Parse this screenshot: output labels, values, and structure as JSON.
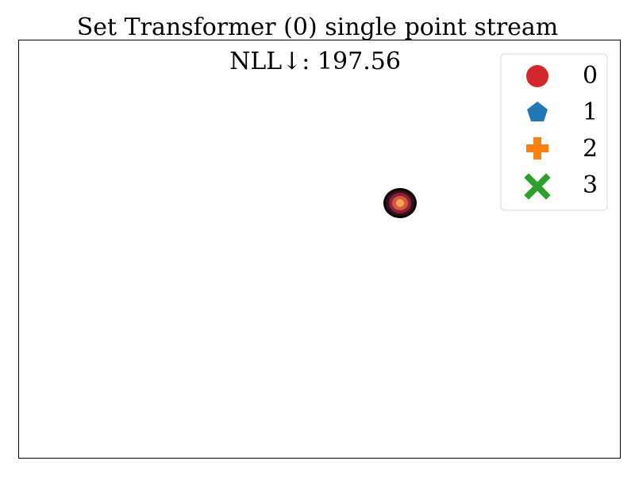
{
  "chart_data": {
    "type": "contour",
    "title": "Set Transformer (0) single point stream",
    "subtitle": "NLL↓: 197.56",
    "xlabel": "",
    "ylabel": "",
    "grid": false,
    "axes_ticks": "hidden",
    "legend": {
      "placement": "top-right",
      "entries": [
        {
          "label": "0",
          "marker": "circle",
          "color": "#d62728"
        },
        {
          "label": "1",
          "marker": "pentagon",
          "color": "#1f77b4"
        },
        {
          "label": "2",
          "marker": "plus",
          "color": "#ff7f0e"
        },
        {
          "label": "3",
          "marker": "x",
          "color": "#2ca02c"
        }
      ]
    },
    "density_levels": [
      {
        "level": 1,
        "color": "#000000"
      },
      {
        "level": 2,
        "color": "#3b0f17"
      },
      {
        "level": 3,
        "color": "#8b2335"
      },
      {
        "level": 4,
        "color": "#d9573b"
      },
      {
        "level": 5,
        "color": "#f5a25a"
      }
    ]
  }
}
